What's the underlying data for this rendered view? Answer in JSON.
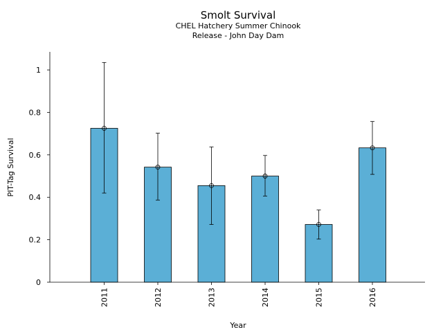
{
  "chart_data": {
    "type": "bar",
    "title": "Smolt Survival",
    "subtitle_lines": [
      "CHEL Hatchery Summer Chinook",
      "Release - John Day Dam"
    ],
    "xlabel": "Year",
    "ylabel": "PIT-Tag Survival",
    "categories": [
      "2011",
      "2012",
      "2013",
      "2014",
      "2015",
      "2016"
    ],
    "values": [
      0.725,
      0.542,
      0.455,
      0.5,
      0.272,
      0.633
    ],
    "error_lower": [
      0.42,
      0.387,
      0.272,
      0.406,
      0.203,
      0.508
    ],
    "error_upper": [
      1.035,
      0.702,
      0.637,
      0.597,
      0.34,
      0.757
    ],
    "ylim": [
      0,
      1.085
    ],
    "yticks": [
      0,
      0.2,
      0.4,
      0.6,
      0.8,
      1
    ],
    "ytick_labels": [
      "0",
      "0.2",
      "0.4",
      "0.6",
      "0.8",
      "1"
    ],
    "bar_color": "#5bafd6",
    "grid": false,
    "legend": "none"
  }
}
